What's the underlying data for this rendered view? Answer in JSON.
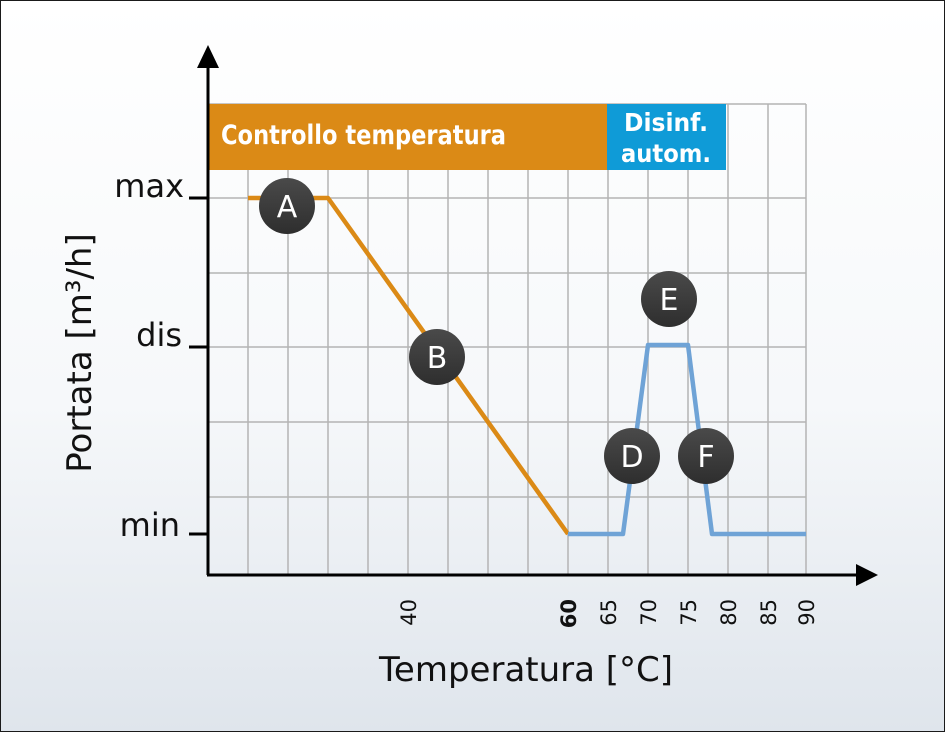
{
  "title": "",
  "axes": {
    "x_title": "Temperatura [°C]",
    "y_title": "Portata [m³/h]",
    "x_ticks": [
      {
        "value": 40,
        "label": "40",
        "bold": false
      },
      {
        "value": 60,
        "label": "60",
        "bold": true
      },
      {
        "value": 65,
        "label": "65",
        "bold": false
      },
      {
        "value": 70,
        "label": "70",
        "bold": false
      },
      {
        "value": 75,
        "label": "75",
        "bold": false
      },
      {
        "value": 80,
        "label": "80",
        "bold": false
      },
      {
        "value": 85,
        "label": "85",
        "bold": false
      },
      {
        "value": 90,
        "label": "90",
        "bold": false
      }
    ],
    "y_levels": [
      {
        "key": "max",
        "label": "max"
      },
      {
        "key": "dis",
        "label": "dis"
      },
      {
        "key": "min",
        "label": "min"
      }
    ]
  },
  "bands": {
    "control": {
      "label": "Controllo temperatura",
      "color": "#db8a16"
    },
    "disinfection": {
      "label_line1": "Disinf.",
      "label_line2": "autom.",
      "color": "#0f9bd7"
    }
  },
  "markers": [
    {
      "id": "A",
      "label": "A"
    },
    {
      "id": "B",
      "label": "B"
    },
    {
      "id": "D",
      "label": "D"
    },
    {
      "id": "E",
      "label": "E"
    },
    {
      "id": "F",
      "label": "F"
    }
  ],
  "colors": {
    "orange_line": "#db8a16",
    "blue_line": "#6fa3d6",
    "grid": "#b4b4b4",
    "marker_fill": "#3b3b3b",
    "axis": "#000000"
  }
}
